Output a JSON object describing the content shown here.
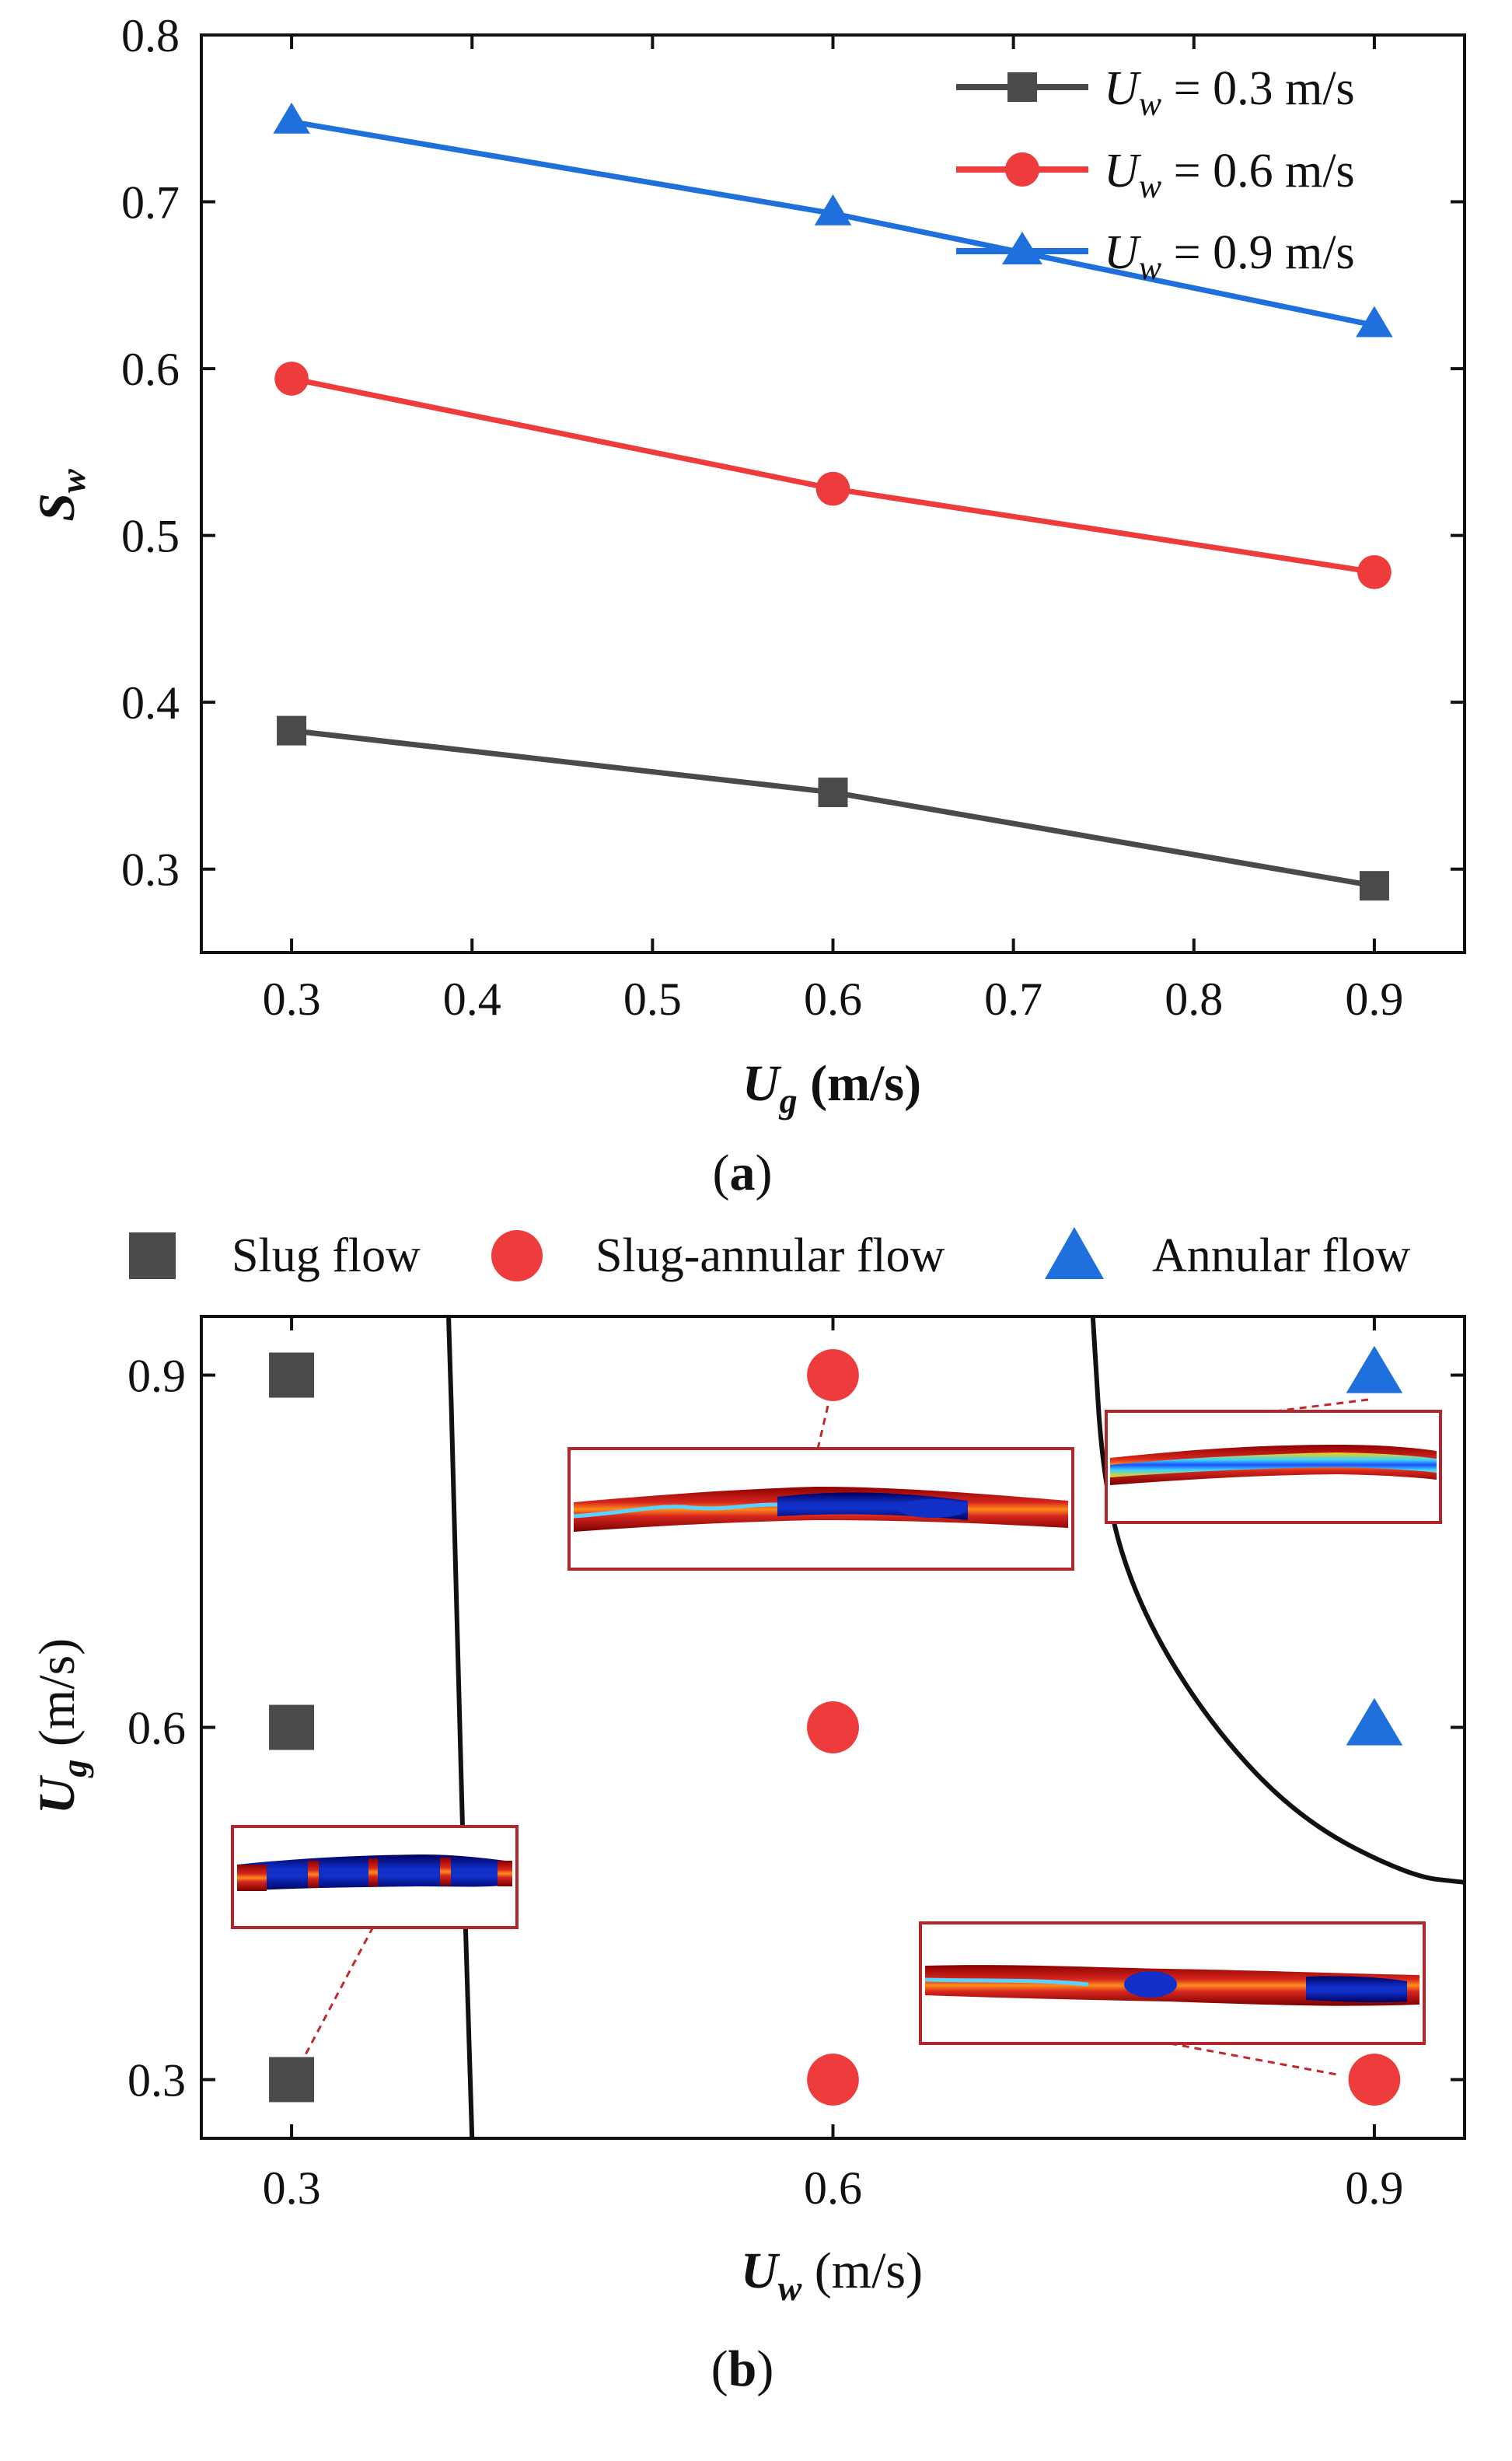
{
  "chart_data": [
    {
      "type": "line",
      "panel_label": "a",
      "xlabel": "U_g (m/s)",
      "xlabel_main": "U",
      "xlabel_sub": "g",
      "xlabel_unit": " (m/s)",
      "ylabel": "S_w",
      "ylabel_main": "S",
      "ylabel_sub": "w",
      "x": [
        0.3,
        0.6,
        0.9
      ],
      "xlim": [
        0.25,
        0.95
      ],
      "ylim": [
        0.25,
        0.8
      ],
      "xticks": [
        "0.3",
        "0.4",
        "0.5",
        "0.6",
        "0.7",
        "0.8",
        "0.9"
      ],
      "yticks": [
        "0.3",
        "0.4",
        "0.5",
        "0.6",
        "0.7",
        "0.8"
      ],
      "legend_position": "top-right",
      "series": [
        {
          "name": "U_w = 0.3 m/s",
          "label_main": "U",
          "label_sub": "w",
          "label_rest": " = 0.3 m/s",
          "values": [
            0.383,
            0.346,
            0.29
          ],
          "color": "#4a4a4a",
          "marker": "square"
        },
        {
          "name": "U_w = 0.6 m/s",
          "label_main": "U",
          "label_sub": "w",
          "label_rest": " = 0.6 m/s",
          "values": [
            0.594,
            0.528,
            0.478
          ],
          "color": "#ee3b3b",
          "marker": "circle"
        },
        {
          "name": "U_w = 0.9 m/s",
          "label_main": "U",
          "label_sub": "w",
          "label_rest": " = 0.9 m/s",
          "values": [
            0.748,
            0.693,
            0.626
          ],
          "color": "#1f6fdc",
          "marker": "triangle"
        }
      ]
    },
    {
      "type": "scatter",
      "panel_label": "b",
      "xlabel": "U_w (m/s)",
      "xlabel_main": "U",
      "xlabel_sub": "w",
      "xlabel_unit": " (m/s)",
      "ylabel": "U_g (m/s)",
      "ylabel_main": "U",
      "ylabel_sub": "g",
      "ylabel_unit": " (m/s)",
      "xlim": [
        0.25,
        0.95
      ],
      "ylim": [
        0.25,
        0.95
      ],
      "xticks": [
        "0.3",
        "0.6",
        "0.9"
      ],
      "yticks": [
        "0.3",
        "0.6",
        "0.9"
      ],
      "legend_position": "top",
      "categories": [
        {
          "name": "Slug flow",
          "color": "#4a4a4a",
          "marker": "square"
        },
        {
          "name": "Slug-annular flow",
          "color": "#ee3b3b",
          "marker": "circle"
        },
        {
          "name": "Annular flow",
          "color": "#1f6fdc",
          "marker": "triangle"
        }
      ],
      "points": [
        {
          "x": 0.3,
          "y": 0.3,
          "category": "Slug flow"
        },
        {
          "x": 0.3,
          "y": 0.6,
          "category": "Slug flow"
        },
        {
          "x": 0.3,
          "y": 0.9,
          "category": "Slug flow"
        },
        {
          "x": 0.6,
          "y": 0.3,
          "category": "Slug-annular flow"
        },
        {
          "x": 0.6,
          "y": 0.6,
          "category": "Slug-annular flow"
        },
        {
          "x": 0.6,
          "y": 0.9,
          "category": "Slug-annular flow"
        },
        {
          "x": 0.9,
          "y": 0.3,
          "category": "Slug-annular flow"
        },
        {
          "x": 0.6,
          "y": 0.6,
          "category": "Slug-annular flow"
        },
        {
          "x": 0.9,
          "y": 0.6,
          "category": "Annular flow"
        },
        {
          "x": 0.9,
          "y": 0.9,
          "category": "Annular flow"
        }
      ],
      "boundaries": [
        {
          "name": "slug / slug-annular boundary",
          "points": [
            [
              0.387,
              0.95
            ],
            [
              0.39,
              0.8
            ],
            [
              0.393,
              0.6
            ],
            [
              0.397,
              0.4
            ],
            [
              0.4,
              0.25
            ]
          ]
        },
        {
          "name": "slug-annular / annular boundary",
          "points": [
            [
              0.744,
              0.95
            ],
            [
              0.75,
              0.8
            ],
            [
              0.77,
              0.7
            ],
            [
              0.81,
              0.6
            ],
            [
              0.86,
              0.52
            ],
            [
              0.92,
              0.473
            ],
            [
              0.95,
              0.468
            ]
          ]
        }
      ]
    }
  ]
}
